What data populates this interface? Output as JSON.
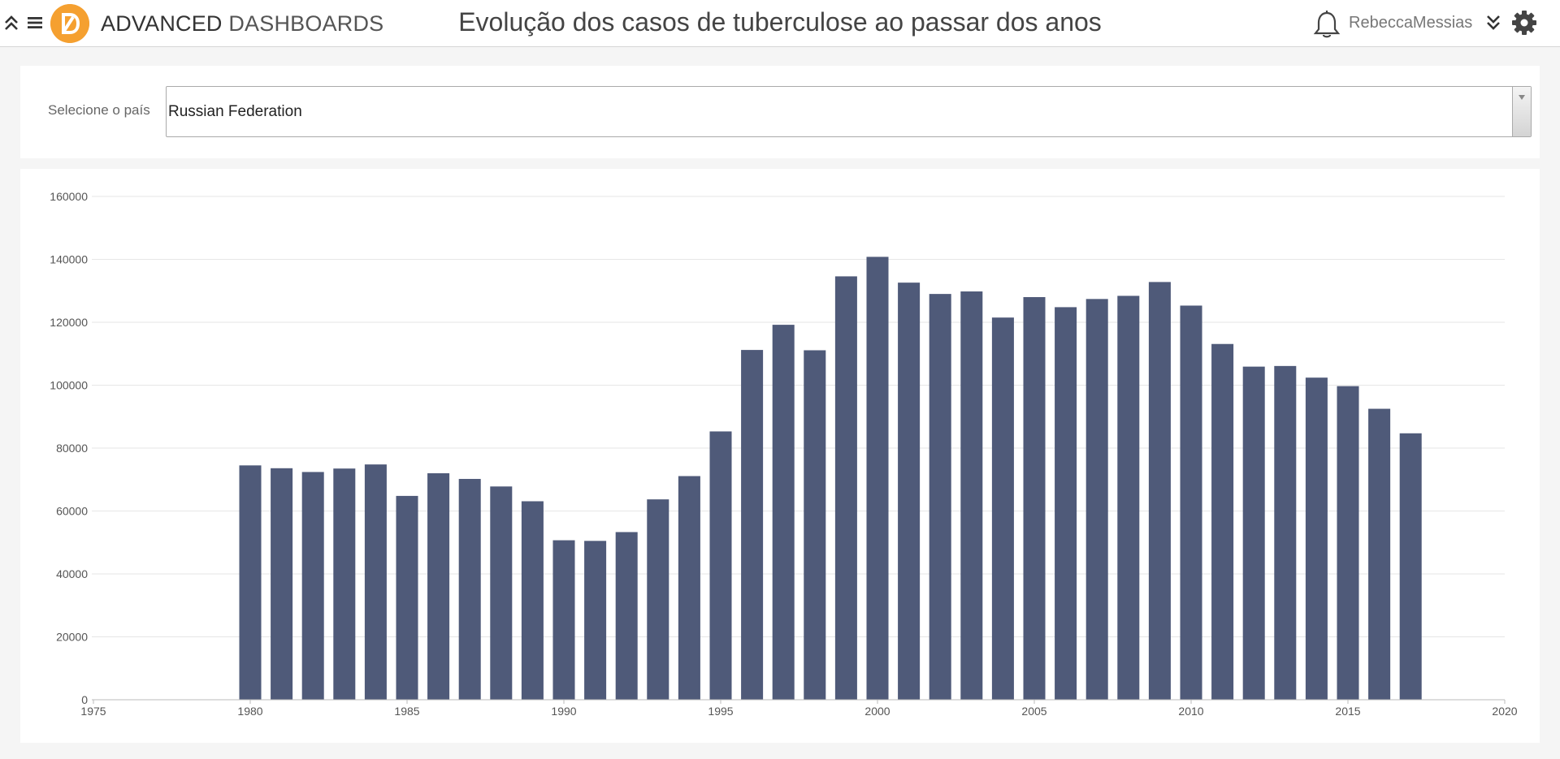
{
  "header": {
    "brand_bold": "ADVANCED",
    "brand_light": "DASHBOARDS",
    "page_title": "Evolução dos casos de tuberculose ao passar dos anos",
    "user_name": "RebeccaMessias"
  },
  "icons": {
    "collapse": "double-chevron-up-icon",
    "menu": "hamburger-menu-icon",
    "logo": "advanced-dashboards-logo",
    "notifications": "bell-icon",
    "expand": "double-chevron-down-icon",
    "settings": "gear-icon"
  },
  "colors": {
    "logo": "#f5a030",
    "bar": "#4f5a79",
    "grid": "#e6e6e6"
  },
  "filter": {
    "label": "Selecione o país",
    "selected": "Russian Federation"
  },
  "chart_data": {
    "type": "bar",
    "title": "",
    "xlabel": "",
    "ylabel": "",
    "xlim": [
      1975,
      2020
    ],
    "ylim": [
      0,
      160000
    ],
    "x_ticks": [
      1975,
      1980,
      1985,
      1990,
      1995,
      2000,
      2005,
      2010,
      2015,
      2020
    ],
    "y_ticks": [
      0,
      20000,
      40000,
      60000,
      80000,
      100000,
      120000,
      140000,
      160000
    ],
    "grid": true,
    "legend": "none",
    "x": [
      1980,
      1981,
      1982,
      1983,
      1984,
      1985,
      1986,
      1987,
      1988,
      1989,
      1990,
      1991,
      1992,
      1993,
      1994,
      1995,
      1996,
      1997,
      1998,
      1999,
      2000,
      2001,
      2002,
      2003,
      2004,
      2005,
      2006,
      2007,
      2008,
      2009,
      2010,
      2011,
      2012,
      2013,
      2014,
      2015,
      2016,
      2017
    ],
    "values": [
      74500,
      73600,
      72400,
      73500,
      74800,
      64800,
      72000,
      70200,
      67800,
      63100,
      50700,
      50500,
      53300,
      63700,
      71100,
      85300,
      111200,
      119200,
      111100,
      134600,
      140800,
      132600,
      129000,
      129800,
      121500,
      128000,
      124800,
      127400,
      128400,
      132800,
      125300,
      113100,
      105900,
      106100,
      102400,
      99700,
      92500,
      84700
    ]
  }
}
